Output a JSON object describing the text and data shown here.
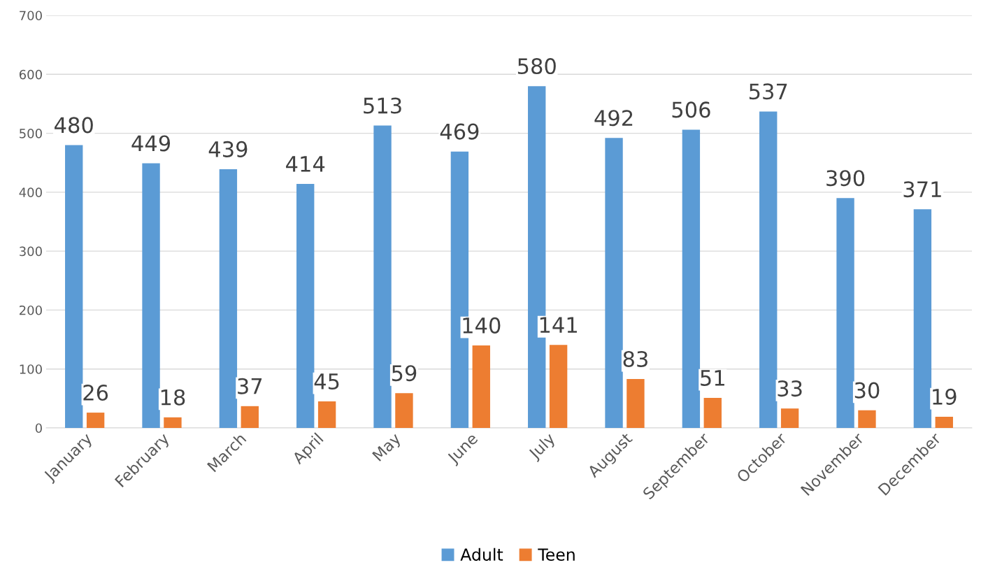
{
  "chart_data": {
    "type": "bar",
    "categories": [
      "January",
      "February",
      "March",
      "April",
      "May",
      "June",
      "July",
      "August",
      "September",
      "October",
      "November",
      "December"
    ],
    "series": [
      {
        "name": "Adult",
        "color": "#5b9bd5",
        "values": [
          480,
          449,
          439,
          414,
          513,
          469,
          580,
          492,
          506,
          537,
          390,
          371
        ]
      },
      {
        "name": "Teen",
        "color": "#ed7d31",
        "values": [
          26,
          18,
          37,
          45,
          59,
          140,
          141,
          83,
          51,
          33,
          30,
          19
        ]
      }
    ],
    "ylim": [
      0,
      700
    ],
    "yticks": [
      0,
      100,
      200,
      300,
      400,
      500,
      600,
      700
    ],
    "grid": "y",
    "legend": "bottom",
    "data_labels": true
  }
}
